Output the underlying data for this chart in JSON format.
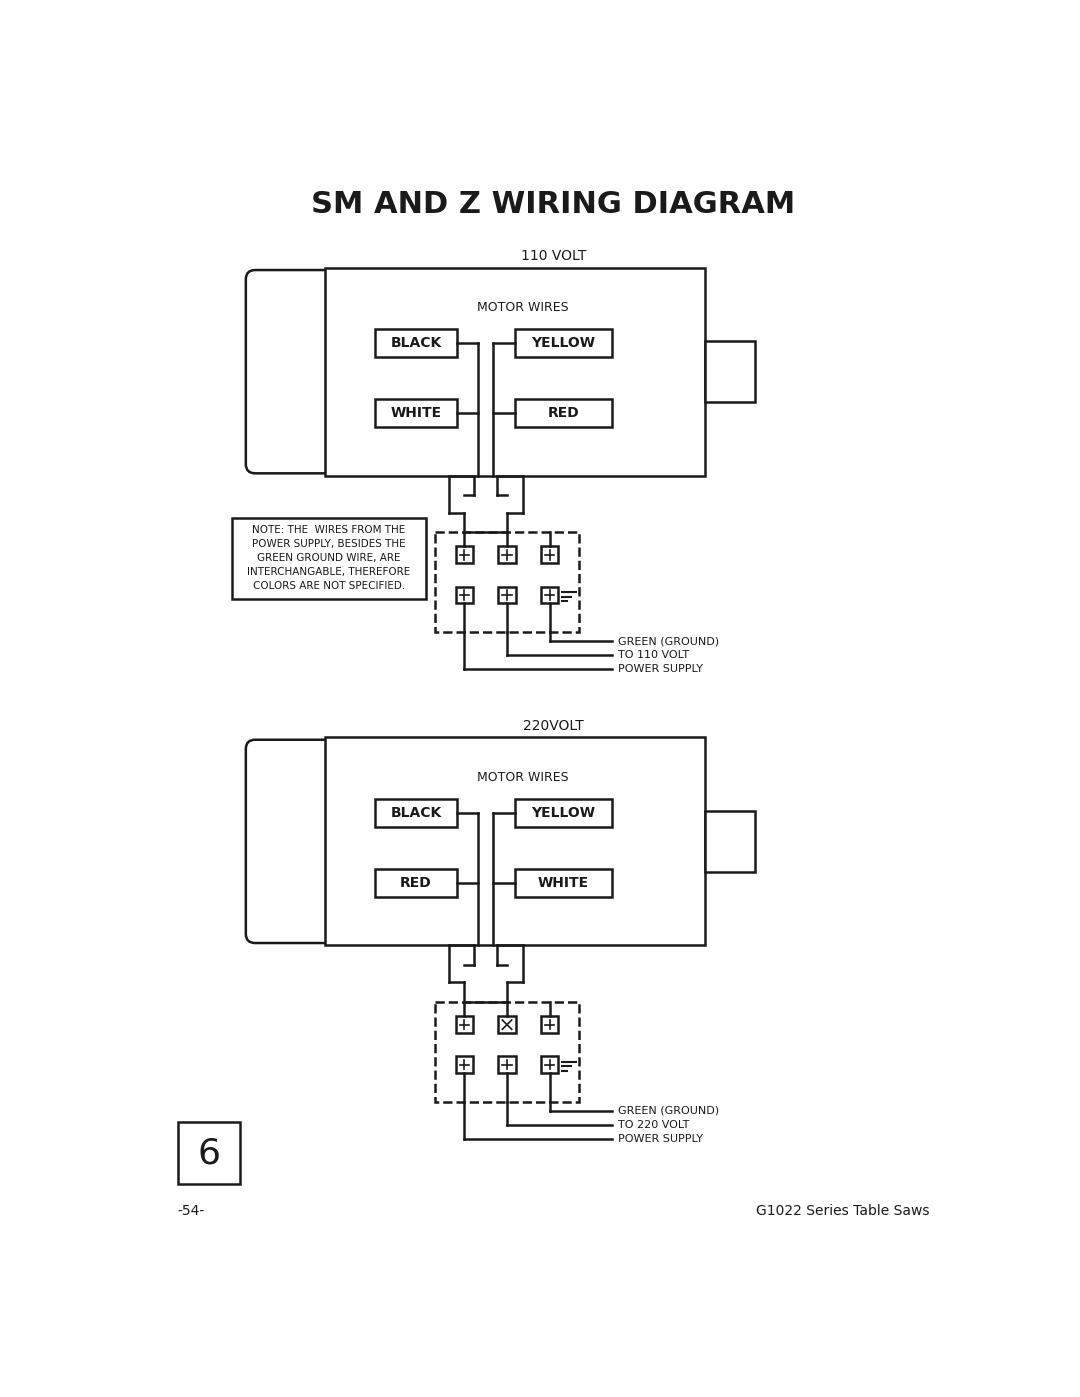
{
  "title": "SM AND Z WIRING DIAGRAM",
  "title_fontsize": 22,
  "title_fontweight": "bold",
  "bg_color": "#ffffff",
  "line_color": "#1a1a1a",
  "page_label": "6",
  "page_number": "-54-",
  "series_label": "G1022 Series Table Saws",
  "diagram_110": {
    "label": "110 VOLT",
    "motor_wires_label": "MOTOR WIRES",
    "wire_labels_top": [
      "BLACK",
      "YELLOW"
    ],
    "wire_labels_bottom": [
      "WHITE",
      "RED"
    ],
    "ground_label": "GREEN (GROUND)",
    "supply_label1": "TO 110 VOLT",
    "supply_label2": "POWER SUPPLY",
    "terminal_middle_crossed": false
  },
  "diagram_220": {
    "label": "220VOLT",
    "motor_wires_label": "MOTOR WIRES",
    "wire_labels_top": [
      "BLACK",
      "YELLOW"
    ],
    "wire_labels_bottom": [
      "RED",
      "WHITE"
    ],
    "ground_label": "GREEN (GROUND)",
    "supply_label1": "TO 220 VOLT",
    "supply_label2": "POWER SUPPLY",
    "terminal_middle_crossed": true
  },
  "note_text": "NOTE: THE  WIRES FROM THE\nPOWER SUPPLY, BESIDES THE\nGREEN GROUND WIRE, ARE\nINTERCHANGABLE, THEREFORE\nCOLORS ARE NOT SPECIFIED."
}
